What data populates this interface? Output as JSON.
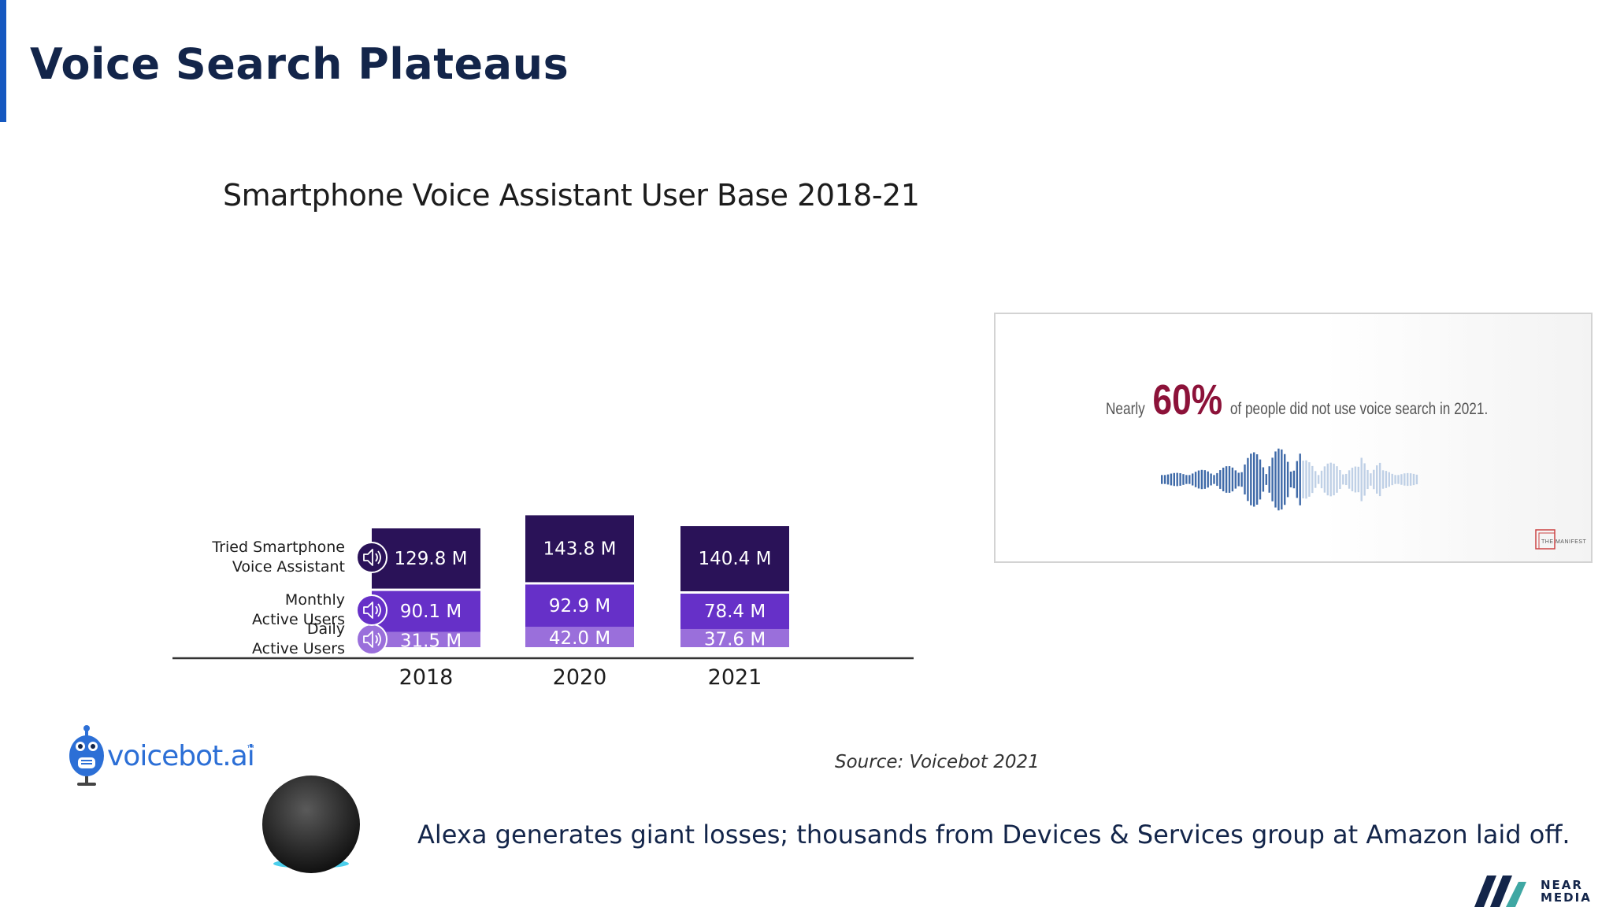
{
  "slide": {
    "title": "Voice Search Plateaus",
    "source": "Source: Voicebot 2021",
    "caption": "Alexa generates giant losses; thousands from Devices & Services group at Amazon laid off."
  },
  "chart_data": {
    "type": "bar",
    "stacked": true,
    "title": "Smartphone Voice Assistant User Base 2018-21",
    "categories": [
      "2018",
      "2020",
      "2021"
    ],
    "series": [
      {
        "name": "Daily Active Users",
        "label_lines": [
          "Daily",
          "Active Users"
        ],
        "values": [
          31.5,
          42.0,
          37.6
        ],
        "labels": [
          "31.5 M",
          "42.0 M",
          "37.6 M"
        ],
        "color": "#9a6fdb"
      },
      {
        "name": "Monthly Active Users",
        "label_lines": [
          "Monthly",
          "Active Users"
        ],
        "values": [
          90.1,
          92.9,
          78.4
        ],
        "labels": [
          "90.1 M",
          "92.9 M",
          "78.4 M"
        ],
        "color": "#6630c8"
      },
      {
        "name": "Tried Smartphone Voice Assistant",
        "label_lines": [
          "Tried Smartphone",
          "Voice Assistant"
        ],
        "values": [
          129.8,
          143.8,
          140.4
        ],
        "labels": [
          "129.8 M",
          "143.8 M",
          "140.4 M"
        ],
        "color": "#2a1258"
      }
    ],
    "series_label_placement": "left",
    "grid": false,
    "xlabel": "",
    "ylabel": ""
  },
  "card": {
    "prefix": "Nearly",
    "highlight": "60%",
    "suffix": "of people did not use voice search in 2021.",
    "logo_text": "THE MANIFEST",
    "highlight_color": "#8c1239"
  },
  "voicebot": {
    "name": "voicebot.ai",
    "tm": "™",
    "color": "#2c6fd6"
  },
  "near_media": {
    "line1": "NEAR",
    "line2": "MEDIA"
  },
  "colors": {
    "accent": "#1558c0",
    "title": "#13254a"
  }
}
